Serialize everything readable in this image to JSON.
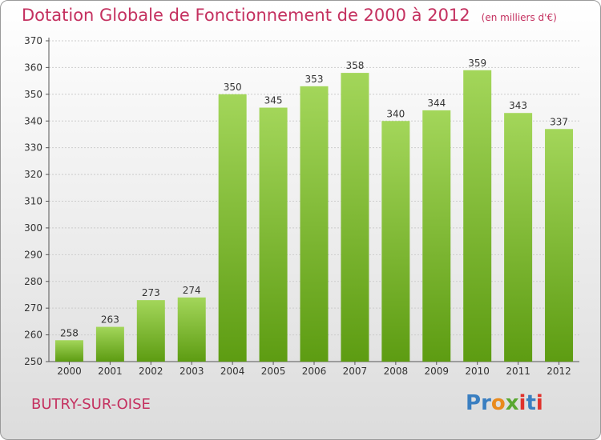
{
  "title": "Dotation Globale de Fonctionnement de 2000 à 2012",
  "unit": "(en milliers d'€)",
  "commune": "BUTRY-SUR-OISE",
  "logo": {
    "text": "Proxiti",
    "colors": [
      "#3a7fc1",
      "#3a7fc1",
      "#e98a1d",
      "#5aa832",
      "#e0322c",
      "#3a7fc1",
      "#e0322c"
    ]
  },
  "colors": {
    "title": "#c4305f",
    "bar_top": "#a3d65a",
    "bar_bottom": "#5d9c12",
    "grid": "#cccccc"
  },
  "chart_data": {
    "type": "bar",
    "categories": [
      "2000",
      "2001",
      "2002",
      "2003",
      "2004",
      "2005",
      "2006",
      "2007",
      "2008",
      "2009",
      "2010",
      "2011",
      "2012"
    ],
    "values": [
      258,
      263,
      273,
      274,
      350,
      345,
      353,
      358,
      340,
      344,
      359,
      343,
      337
    ],
    "ylim": [
      250,
      370
    ],
    "yticks": [
      250,
      260,
      270,
      280,
      290,
      300,
      310,
      320,
      330,
      340,
      350,
      360,
      370
    ],
    "grid": true,
    "xlabel": "",
    "ylabel": ""
  }
}
